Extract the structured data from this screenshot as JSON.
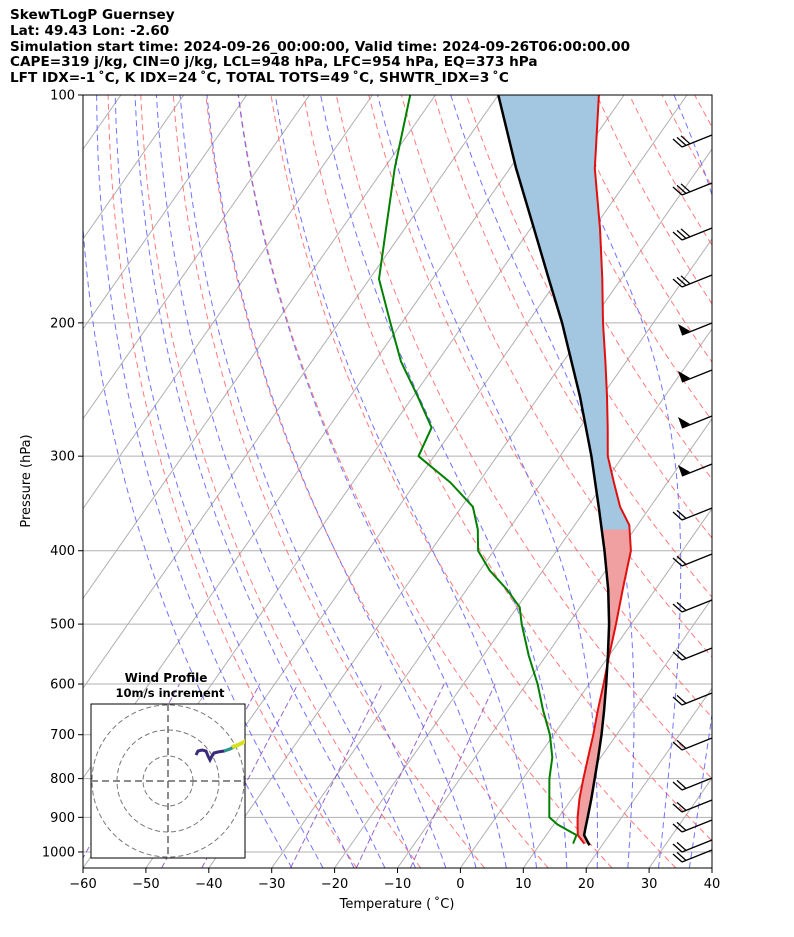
{
  "header": {
    "line1": "SkewTLogP Guernsey",
    "line2": "Lat: 49.43   Lon: -2.60",
    "line3": "Simulation start time: 2024-09-26_00:00:00, Valid time: 2024-09-26T06:00:00.00",
    "line4": "CAPE=319 j/kg, CIN=0 j/kg, LCL=948 hPa, LFC=954 hPa, EQ=373 hPa",
    "line5": "LFT IDX=-1 ˚C, K IDX=24 ˚C, TOTAL TOTS=49 ˚C, SHWTR_IDX=3 ˚C"
  },
  "chart_data": {
    "type": "skew-t log-p",
    "xlabel": "Temperature ( ˚C)",
    "ylabel": "Pressure (hPa)",
    "xlim": [
      -60,
      40
    ],
    "ylim": [
      1050,
      100
    ],
    "xticks": [
      -60,
      -50,
      -40,
      -30,
      -20,
      -10,
      0,
      10,
      20,
      30,
      40
    ],
    "xtick_labels": [
      "−60",
      "−50",
      "−40",
      "−30",
      "−20",
      "−10",
      "0",
      "10",
      "20",
      "30",
      "40"
    ],
    "yticks": [
      1000,
      900,
      800,
      700,
      600,
      500,
      400,
      300,
      200,
      100
    ],
    "ytick_labels": [
      "1000",
      "900",
      "800",
      "700",
      "600",
      "500",
      "400",
      "300",
      "200",
      "100"
    ],
    "y_scale": "log",
    "grid": true,
    "colors": {
      "temperature": "#e01010",
      "dewpoint": "#008000",
      "parcel": "#000000",
      "cape_fill": "#a3c6e1",
      "cin_fill": "#f0a0a0",
      "dry_adiabat": "#ff6464",
      "moist_adiabat": "#5a5aff",
      "mixing_ratio": "#8040c0",
      "grid": "#b0b0b0"
    },
    "series": [
      {
        "role": "temperature",
        "points": [
          [
            17,
            975
          ],
          [
            15,
            950
          ],
          [
            14,
            925
          ],
          [
            13,
            900
          ],
          [
            11.2,
            850
          ],
          [
            9.6,
            800
          ],
          [
            8,
            750
          ],
          [
            6.3,
            700
          ],
          [
            4.3,
            650
          ],
          [
            2.3,
            600
          ],
          [
            0,
            550
          ],
          [
            -2.4,
            500
          ],
          [
            -5.2,
            450
          ],
          [
            -8.2,
            400
          ],
          [
            -11.3,
            370
          ],
          [
            -14.8,
            350
          ],
          [
            -18.5,
            325
          ],
          [
            -22.4,
            300
          ],
          [
            -25.6,
            275
          ],
          [
            -29.2,
            250
          ],
          [
            -33.3,
            225
          ],
          [
            -38,
            200
          ],
          [
            -43,
            175
          ],
          [
            -49,
            150
          ],
          [
            -56.5,
            125
          ],
          [
            -64,
            100
          ]
        ]
      },
      {
        "role": "dewpoint",
        "points": [
          [
            15.2,
            975
          ],
          [
            14.8,
            950
          ],
          [
            10.6,
            920
          ],
          [
            8.5,
            900
          ],
          [
            6.4,
            850
          ],
          [
            4.2,
            800
          ],
          [
            2.3,
            750
          ],
          [
            -0.6,
            700
          ],
          [
            -4.4,
            650
          ],
          [
            -8.2,
            600
          ],
          [
            -12.8,
            550
          ],
          [
            -17.4,
            500
          ],
          [
            -19.6,
            475
          ],
          [
            -23.6,
            450
          ],
          [
            -28.4,
            425
          ],
          [
            -32.5,
            400
          ],
          [
            -34.9,
            375
          ],
          [
            -38.2,
            350
          ],
          [
            -44.5,
            325
          ],
          [
            -52.5,
            300
          ],
          [
            -53.6,
            275
          ],
          [
            -59.3,
            250
          ],
          [
            -65.8,
            225
          ],
          [
            -71.8,
            200
          ],
          [
            -78.5,
            175
          ],
          [
            -83,
            150
          ],
          [
            -88.3,
            125
          ],
          [
            -94,
            100
          ]
        ]
      },
      {
        "role": "parcel",
        "points": [
          [
            18,
            980
          ],
          [
            16,
            950
          ],
          [
            15.3,
            925
          ],
          [
            14.6,
            900
          ],
          [
            13.1,
            850
          ],
          [
            11.4,
            800
          ],
          [
            9.6,
            750
          ],
          [
            7.6,
            700
          ],
          [
            5.3,
            650
          ],
          [
            2.7,
            600
          ],
          [
            -0.2,
            550
          ],
          [
            -3.5,
            500
          ],
          [
            -7.5,
            450
          ],
          [
            -12.4,
            400
          ],
          [
            -18.2,
            350
          ],
          [
            -25,
            300
          ],
          [
            -33.5,
            250
          ],
          [
            -44.5,
            200
          ],
          [
            -51.5,
            175
          ],
          [
            -59.5,
            150
          ],
          [
            -69,
            125
          ],
          [
            -80,
            100
          ]
        ]
      }
    ],
    "inset": {
      "title_line1": "Wind Profile",
      "title_line2": "10m/s increment"
    }
  }
}
